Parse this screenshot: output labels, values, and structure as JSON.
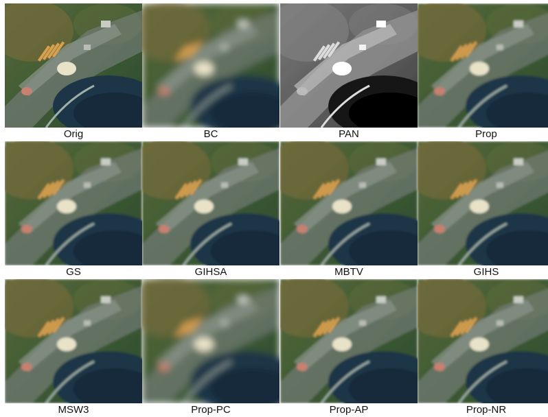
{
  "figure": {
    "panels": [
      {
        "label": "Orig"
      },
      {
        "label": "BC"
      },
      {
        "label": "PAN"
      },
      {
        "label": "Prop"
      },
      {
        "label": "GS"
      },
      {
        "label": "GIHSA"
      },
      {
        "label": "MBTV"
      },
      {
        "label": "GIHS"
      },
      {
        "label": "MSW3"
      },
      {
        "label": "Prop-PC"
      },
      {
        "label": "Prop-AP"
      },
      {
        "label": "Prop-NR"
      }
    ]
  }
}
